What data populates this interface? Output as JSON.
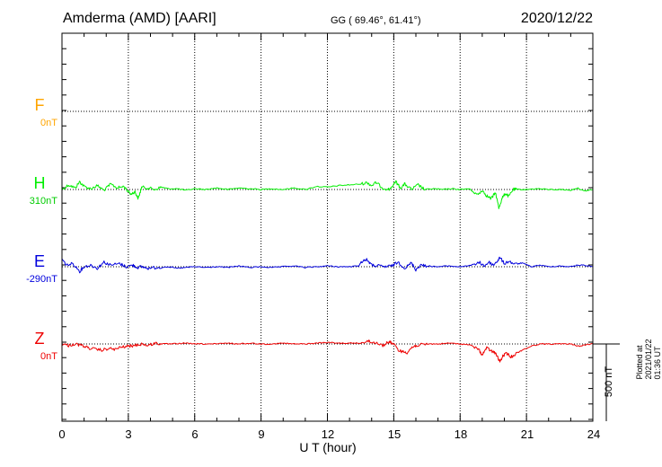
{
  "header": {
    "station": "Amderma (AMD)  [AARI]",
    "coords": "GG ( 69.46°,  61.41°)",
    "date": "2020/12/22"
  },
  "footer": {
    "plotted": "Plotted at 2021/01/22 01:36 UT"
  },
  "chart_data": {
    "type": "line",
    "xlabel": "U T (hour)",
    "xlim": [
      0,
      24
    ],
    "xticks": [
      "0",
      "3",
      "6",
      "9",
      "12",
      "15",
      "18",
      "21",
      "24"
    ],
    "scale_bar": "500 nT",
    "grid": true,
    "units": "nT",
    "series": [
      {
        "name": "F",
        "baseline_label": "0nT",
        "color": "#ffa500",
        "x": [],
        "y": []
      },
      {
        "name": "H",
        "baseline_label": "310nT",
        "color": "#00ee00",
        "x": [
          0,
          0.3,
          0.6,
          0.8,
          1.0,
          1.3,
          1.6,
          1.9,
          2.2,
          2.5,
          2.8,
          3.1,
          3.3,
          3.45,
          3.6,
          3.9,
          4.2,
          4.5,
          4.8,
          5.2,
          5.6,
          6.0,
          6.5,
          7.0,
          7.5,
          8.0,
          8.5,
          9.0,
          9.5,
          10.0,
          10.5,
          11.0,
          11.5,
          12.0,
          12.5,
          13.0,
          13.5,
          13.8,
          14.0,
          14.2,
          14.5,
          14.8,
          15.1,
          15.3,
          15.5,
          15.8,
          16.1,
          16.4,
          16.8,
          17.2,
          17.6,
          18.0,
          18.4,
          18.8,
          19.0,
          19.2,
          19.4,
          19.6,
          19.75,
          19.9,
          20.05,
          20.2,
          20.4,
          20.6,
          21.0,
          21.5,
          22.0,
          22.5,
          23.0,
          23.3,
          23.6,
          24.0
        ],
        "y": [
          0,
          30,
          10,
          50,
          20,
          5,
          25,
          -5,
          35,
          10,
          20,
          -30,
          -15,
          -60,
          15,
          10,
          0,
          15,
          5,
          5,
          -5,
          5,
          0,
          10,
          0,
          10,
          5,
          0,
          5,
          0,
          10,
          0,
          20,
          15,
          25,
          30,
          35,
          45,
          25,
          45,
          10,
          0,
          50,
          10,
          35,
          0,
          30,
          0,
          5,
          0,
          5,
          0,
          5,
          -35,
          -5,
          -40,
          -60,
          -20,
          -120,
          -55,
          -25,
          -45,
          0,
          0,
          0,
          5,
          0,
          0,
          -5,
          10,
          -10,
          0
        ]
      },
      {
        "name": "E",
        "baseline_label": "-290nT",
        "color": "#0000dd",
        "x": [
          0,
          0.2,
          0.5,
          0.8,
          1.0,
          1.3,
          1.6,
          1.9,
          2.2,
          2.6,
          2.9,
          3.2,
          3.4,
          3.6,
          3.9,
          4.3,
          4.8,
          5.2,
          5.6,
          6.0,
          6.5,
          7.0,
          7.5,
          8.0,
          8.5,
          9.0,
          9.5,
          10.0,
          10.5,
          11.0,
          11.5,
          12.0,
          12.5,
          13.0,
          13.4,
          13.6,
          13.8,
          14.0,
          14.3,
          14.6,
          14.9,
          15.2,
          15.5,
          15.8,
          16.0,
          16.2,
          16.5,
          17.0,
          17.5,
          18.0,
          18.5,
          18.9,
          19.1,
          19.3,
          19.5,
          19.7,
          19.8,
          20.0,
          20.2,
          20.5,
          20.8,
          21.2,
          21.6,
          22.0,
          22.5,
          23.0,
          23.3,
          23.6,
          24.0
        ],
        "y": [
          50,
          10,
          20,
          -30,
          0,
          10,
          -10,
          30,
          10,
          20,
          0,
          10,
          -5,
          0,
          -10,
          -5,
          0,
          -10,
          -5,
          0,
          -5,
          0,
          -5,
          5,
          -5,
          0,
          -5,
          0,
          5,
          -5,
          0,
          5,
          0,
          0,
          5,
          40,
          45,
          10,
          5,
          0,
          5,
          30,
          -10,
          25,
          -20,
          10,
          5,
          0,
          5,
          0,
          10,
          25,
          5,
          30,
          10,
          40,
          60,
          20,
          35,
          15,
          25,
          0,
          10,
          0,
          5,
          0,
          10,
          10,
          0
        ]
      },
      {
        "name": "Z",
        "baseline_label": "0nT",
        "color": "#ee0000",
        "x": [
          0,
          0.3,
          0.6,
          0.9,
          1.2,
          1.5,
          1.8,
          2.1,
          2.4,
          2.7,
          3.0,
          3.3,
          3.6,
          3.9,
          4.2,
          4.5,
          5.0,
          5.5,
          6.0,
          6.5,
          7.0,
          7.5,
          8.0,
          8.5,
          9.0,
          9.5,
          10.0,
          10.5,
          11.0,
          11.5,
          12.0,
          12.5,
          13.0,
          13.5,
          13.8,
          14.0,
          14.2,
          14.5,
          14.8,
          15.0,
          15.2,
          15.4,
          15.6,
          15.8,
          16.0,
          16.3,
          16.6,
          17.0,
          17.5,
          18.0,
          18.4,
          18.8,
          19.0,
          19.2,
          19.4,
          19.6,
          19.8,
          19.95,
          20.1,
          20.3,
          20.5,
          20.8,
          21.2,
          21.6,
          22.0,
          22.5,
          23.0,
          23.4,
          23.7,
          24.0
        ],
        "y": [
          0,
          -10,
          0,
          -10,
          -25,
          -35,
          -40,
          -30,
          -35,
          -20,
          -15,
          -10,
          0,
          -10,
          5,
          0,
          0,
          5,
          0,
          0,
          0,
          5,
          0,
          5,
          0,
          0,
          5,
          0,
          0,
          5,
          10,
          5,
          5,
          5,
          20,
          10,
          10,
          -10,
          15,
          0,
          -40,
          -50,
          -55,
          -25,
          -10,
          -5,
          0,
          0,
          5,
          0,
          -5,
          -30,
          -70,
          -25,
          -45,
          -60,
          -115,
          -75,
          -60,
          -85,
          -65,
          -40,
          -15,
          0,
          0,
          0,
          0,
          -15,
          -5,
          0
        ]
      }
    ]
  }
}
